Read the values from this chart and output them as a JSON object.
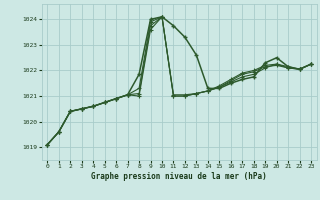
{
  "title": "Graphe pression niveau de la mer (hPa)",
  "bg_color": "#cde8e4",
  "grid_color": "#a8ccca",
  "line_color": "#2d5a2d",
  "xlim": [
    -0.5,
    23.5
  ],
  "ylim": [
    1018.5,
    1024.6
  ],
  "yticks": [
    1019,
    1020,
    1021,
    1022,
    1023,
    1024
  ],
  "xticks": [
    0,
    1,
    2,
    3,
    4,
    5,
    6,
    7,
    8,
    9,
    10,
    11,
    12,
    13,
    14,
    15,
    16,
    17,
    18,
    19,
    20,
    21,
    22,
    23
  ],
  "series": [
    {
      "x": [
        0,
        1,
        2,
        3,
        4,
        5,
        6,
        7,
        8,
        9,
        10,
        11,
        12,
        13,
        14,
        15,
        16,
        17,
        18,
        19,
        20,
        21,
        22,
        23
      ],
      "y": [
        1019.1,
        1019.6,
        1020.4,
        1020.5,
        1020.6,
        1020.75,
        1020.9,
        1021.05,
        1021.85,
        1024.0,
        1024.1,
        1023.75,
        1023.3,
        1022.6,
        1021.3,
        1021.3,
        1021.5,
        1021.65,
        1021.75,
        1022.3,
        1022.5,
        1022.15,
        1022.05,
        1022.25
      ],
      "lw": 1.1,
      "ms": 3.5,
      "mew": 1.0
    },
    {
      "x": [
        0,
        1,
        2,
        3,
        4,
        5,
        6,
        7,
        8,
        9,
        10,
        11,
        12,
        13,
        14,
        15,
        16,
        17,
        18,
        19,
        20,
        21,
        22,
        23
      ],
      "y": [
        1019.1,
        1019.6,
        1020.4,
        1020.5,
        1020.6,
        1020.75,
        1020.9,
        1021.05,
        1021.3,
        1023.9,
        1024.1,
        1021.05,
        1021.05,
        1021.1,
        1021.2,
        1021.35,
        1021.55,
        1021.75,
        1021.85,
        1022.1,
        1022.25,
        1022.1,
        1022.05,
        1022.25
      ],
      "lw": 0.8,
      "ms": 3.0,
      "mew": 0.8
    },
    {
      "x": [
        0,
        1,
        2,
        3,
        4,
        5,
        6,
        7,
        8,
        9,
        10,
        11,
        12,
        13,
        14,
        15,
        16,
        17,
        18,
        19,
        20,
        21,
        22,
        23
      ],
      "y": [
        1019.1,
        1019.6,
        1020.4,
        1020.5,
        1020.6,
        1020.75,
        1020.9,
        1021.05,
        1021.1,
        1023.75,
        1024.1,
        1021.0,
        1021.0,
        1021.1,
        1021.2,
        1021.35,
        1021.6,
        1021.85,
        1021.95,
        1022.15,
        1022.2,
        1022.1,
        1022.05,
        1022.25
      ],
      "lw": 0.8,
      "ms": 3.0,
      "mew": 0.8
    },
    {
      "x": [
        0,
        1,
        2,
        3,
        4,
        5,
        6,
        7,
        8,
        9,
        10,
        11,
        12,
        13,
        14,
        15,
        16,
        17,
        18,
        19,
        20,
        21,
        22,
        23
      ],
      "y": [
        1019.1,
        1019.6,
        1020.4,
        1020.5,
        1020.6,
        1020.75,
        1020.9,
        1021.05,
        1021.0,
        1023.6,
        1024.1,
        1021.0,
        1021.0,
        1021.1,
        1021.2,
        1021.4,
        1021.65,
        1021.9,
        1022.0,
        1022.2,
        1022.25,
        1022.15,
        1022.05,
        1022.25
      ],
      "lw": 0.8,
      "ms": 3.0,
      "mew": 0.8
    }
  ]
}
